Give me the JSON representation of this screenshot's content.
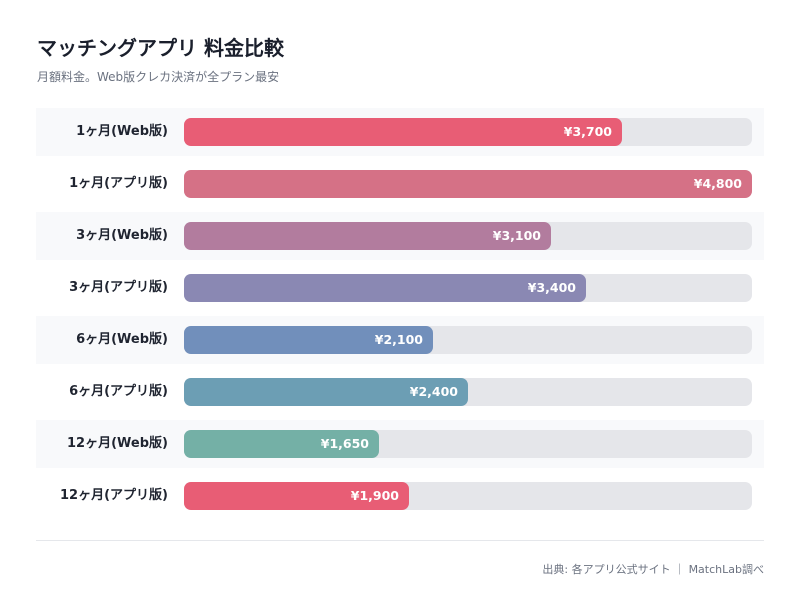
{
  "chart_data": {
    "type": "bar",
    "orientation": "horizontal",
    "title": "マッチングアプリ 料金比較",
    "subtitle": "月額料金。Web版クレカ決済が全プラン最安",
    "categories": [
      "1ヶ月(Web版)",
      "1ヶ月(アプリ版)",
      "3ヶ月(Web版)",
      "3ヶ月(アプリ版)",
      "6ヶ月(Web版)",
      "6ヶ月(アプリ版)",
      "12ヶ月(Web版)",
      "12ヶ月(アプリ版)"
    ],
    "values": [
      3700,
      4800,
      3100,
      3400,
      2100,
      2400,
      1650,
      1900
    ],
    "value_labels": [
      "¥3,700",
      "¥4,800",
      "¥3,100",
      "¥3,400",
      "¥2,100",
      "¥2,400",
      "¥1,650",
      "¥1,900"
    ],
    "colors": [
      "#e85d75",
      "#d57186",
      "#b27c9e",
      "#8a88b3",
      "#718fbb",
      "#6c9eb4",
      "#74b0a6",
      "#e85d75"
    ],
    "track_color": "#e5e6ea",
    "xlim": [
      0,
      4800
    ],
    "grid": false,
    "legend": "none",
    "source": "出典: 各アプリ公式サイト ｜ MatchLab調べ"
  }
}
